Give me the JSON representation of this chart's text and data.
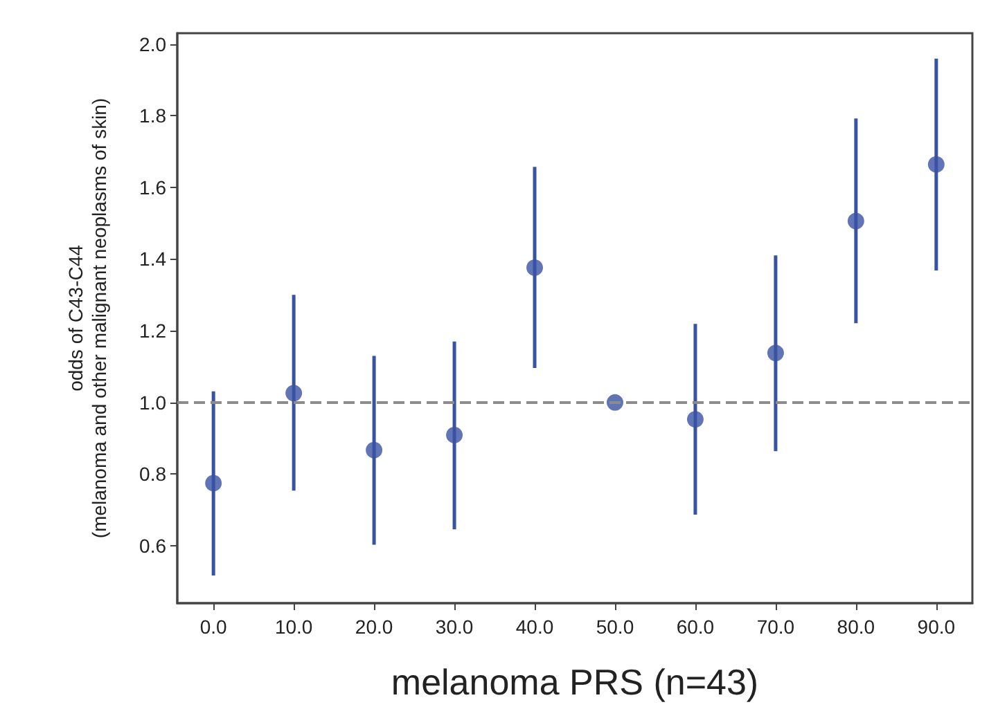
{
  "chart_data": {
    "type": "scatter",
    "xlabel": "melanoma PRS (n=43)",
    "ylabel": "odds of C43-C44\n(melanoma and other malignant neoplasms of skin)",
    "categories": [
      "0.0",
      "10.0",
      "20.0",
      "30.0",
      "40.0",
      "50.0",
      "60.0",
      "70.0",
      "80.0",
      "90.0"
    ],
    "series": [
      {
        "color": "#3953a4",
        "values": [
          0.775,
          1.026,
          0.867,
          0.909,
          1.376,
          1.0,
          0.953,
          1.138,
          1.506,
          1.664
        ],
        "errors": [
          [
            0.517,
            1.031
          ],
          [
            0.754,
            1.3
          ],
          [
            0.603,
            1.13
          ],
          [
            0.646,
            1.17
          ],
          [
            1.096,
            1.657
          ],
          null,
          [
            0.687,
            1.219
          ],
          [
            0.864,
            1.41
          ],
          [
            1.221,
            1.792
          ],
          [
            1.368,
            1.959
          ]
        ]
      }
    ],
    "ylim": [
      0.44,
      2.03
    ],
    "yticks": [
      {
        "value": 0.6,
        "label": "0.6"
      },
      {
        "value": 0.8,
        "label": "0.8"
      },
      {
        "value": 1,
        "label": "1.0"
      },
      {
        "value": 1.2,
        "label": "1.2"
      },
      {
        "value": 1.4,
        "label": "1.4"
      },
      {
        "value": 1.6,
        "label": "1.6"
      },
      {
        "value": 1.8,
        "label": "1.8"
      },
      {
        "value": 2,
        "label": "2.0"
      }
    ],
    "ref_lines": [
      {
        "axis": "y",
        "value": 1,
        "color": "#8c8c8c",
        "line_style": "dashed"
      }
    ],
    "grid": false,
    "marker": "circle"
  }
}
